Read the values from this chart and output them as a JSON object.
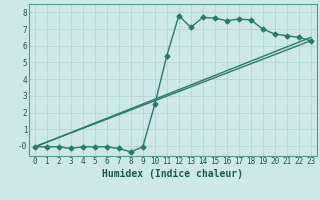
{
  "xlabel": "Humidex (Indice chaleur)",
  "xlim": [
    -0.5,
    23.5
  ],
  "ylim": [
    -0.6,
    8.5
  ],
  "xticks": [
    0,
    1,
    2,
    3,
    4,
    5,
    6,
    7,
    8,
    9,
    10,
    11,
    12,
    13,
    14,
    15,
    16,
    17,
    18,
    19,
    20,
    21,
    22,
    23
  ],
  "yticks": [
    0,
    1,
    2,
    3,
    4,
    5,
    6,
    7,
    8
  ],
  "ytick_labels": [
    "-0",
    "1",
    "2",
    "3",
    "4",
    "5",
    "6",
    "7",
    "8"
  ],
  "bg_color": "#cce8e8",
  "grid_color": "#b8d8d8",
  "line_color": "#2a7a70",
  "line1_x": [
    0,
    1,
    2,
    3,
    4,
    5,
    6,
    7,
    8,
    9,
    10,
    11,
    12,
    13,
    14,
    15,
    16,
    17,
    18,
    19,
    20,
    21,
    22,
    23
  ],
  "line1_y": [
    -0.05,
    -0.05,
    -0.05,
    -0.15,
    -0.05,
    -0.05,
    -0.05,
    -0.15,
    -0.35,
    -0.05,
    2.5,
    5.4,
    7.8,
    7.1,
    7.7,
    7.65,
    7.5,
    7.6,
    7.55,
    7.0,
    6.7,
    6.6,
    6.5,
    6.3
  ],
  "line2_x": [
    0,
    23
  ],
  "line2_y": [
    -0.05,
    6.3
  ],
  "line3_x": [
    0,
    23
  ],
  "line3_y": [
    -0.05,
    6.5
  ],
  "markersize": 2.5,
  "linewidth": 1.0,
  "tick_fontsize": 5.5,
  "xlabel_fontsize": 7.0
}
